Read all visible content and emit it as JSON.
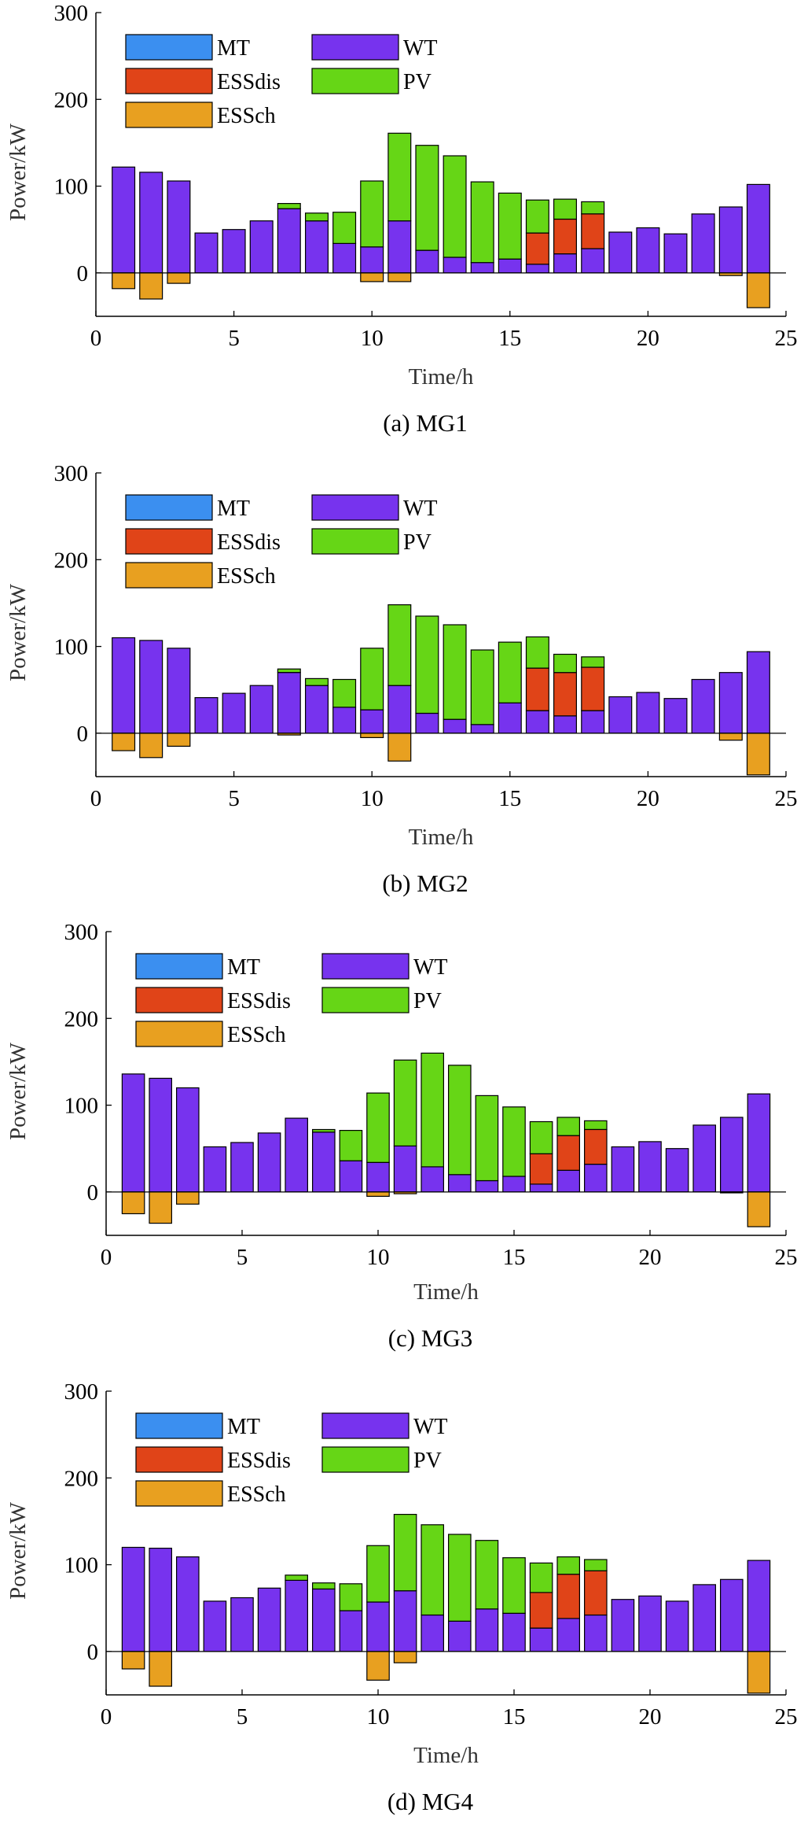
{
  "chart_data": [
    {
      "type": "bar",
      "caption": "(a) MG1",
      "xlabel": "Time/h",
      "ylabel": "Power/kW",
      "xlim": [
        0,
        25
      ],
      "ylim": [
        -50,
        300
      ],
      "xticks": [
        "0",
        "5",
        "10",
        "15",
        "20",
        "25"
      ],
      "yticks": [
        "0",
        "100",
        "200",
        "300"
      ],
      "x": [
        1,
        2,
        3,
        4,
        5,
        6,
        7,
        8,
        9,
        10,
        11,
        12,
        13,
        14,
        15,
        16,
        17,
        18,
        19,
        20,
        21,
        22,
        23,
        24
      ],
      "series": [
        {
          "name": "MT",
          "values": [
            0,
            0,
            0,
            0,
            0,
            0,
            0,
            0,
            0,
            0,
            0,
            0,
            0,
            0,
            0,
            0,
            0,
            0,
            0,
            0,
            0,
            0,
            0,
            0
          ]
        },
        {
          "name": "WT",
          "values": [
            122,
            116,
            106,
            46,
            50,
            60,
            74,
            60,
            34,
            30,
            60,
            26,
            18,
            12,
            16,
            10,
            22,
            28,
            47,
            52,
            45,
            68,
            76,
            102
          ]
        },
        {
          "name": "ESSdis",
          "values": [
            0,
            0,
            0,
            0,
            0,
            0,
            0,
            0,
            0,
            0,
            0,
            0,
            0,
            0,
            0,
            36,
            40,
            40,
            0,
            0,
            0,
            0,
            0,
            0
          ]
        },
        {
          "name": "PV",
          "values": [
            0,
            0,
            0,
            0,
            0,
            0,
            6,
            9,
            36,
            76,
            101,
            121,
            117,
            93,
            76,
            38,
            23,
            14,
            0,
            0,
            0,
            0,
            0,
            0
          ]
        },
        {
          "name": "ESSch",
          "values": [
            -18,
            -30,
            -12,
            0,
            0,
            0,
            0,
            0,
            0,
            -10,
            -10,
            0,
            0,
            0,
            0,
            0,
            0,
            0,
            0,
            0,
            0,
            0,
            -3,
            -40
          ]
        }
      ],
      "legend": [
        "MT",
        "WT",
        "ESSdis",
        "PV",
        "ESSch"
      ],
      "legend_position": "top-left",
      "colors": {
        "MT": "#3b8ff0",
        "WT": "#7733ee",
        "ESSdis": "#e04418",
        "PV": "#66d616",
        "ESSch": "#e8a020"
      }
    },
    {
      "type": "bar",
      "caption": "(b) MG2",
      "xlabel": "Time/h",
      "ylabel": "Power/kW",
      "xlim": [
        0,
        25
      ],
      "ylim": [
        -50,
        300
      ],
      "xticks": [
        "0",
        "5",
        "10",
        "15",
        "20",
        "25"
      ],
      "yticks": [
        "0",
        "100",
        "200",
        "300"
      ],
      "x": [
        1,
        2,
        3,
        4,
        5,
        6,
        7,
        8,
        9,
        10,
        11,
        12,
        13,
        14,
        15,
        16,
        17,
        18,
        19,
        20,
        21,
        22,
        23,
        24
      ],
      "series": [
        {
          "name": "MT",
          "values": [
            0,
            0,
            0,
            0,
            0,
            0,
            0,
            0,
            0,
            0,
            0,
            0,
            0,
            0,
            0,
            0,
            0,
            0,
            0,
            0,
            0,
            0,
            0,
            0
          ]
        },
        {
          "name": "WT",
          "values": [
            110,
            107,
            98,
            41,
            46,
            55,
            70,
            55,
            30,
            27,
            55,
            23,
            16,
            10,
            35,
            26,
            20,
            26,
            42,
            47,
            40,
            62,
            70,
            94
          ]
        },
        {
          "name": "ESSdis",
          "values": [
            0,
            0,
            0,
            0,
            0,
            0,
            0,
            0,
            0,
            0,
            0,
            0,
            0,
            0,
            0,
            49,
            50,
            50,
            0,
            0,
            0,
            0,
            0,
            0
          ]
        },
        {
          "name": "PV",
          "values": [
            0,
            0,
            0,
            0,
            0,
            0,
            4,
            8,
            32,
            71,
            93,
            112,
            109,
            86,
            70,
            36,
            21,
            12,
            0,
            0,
            0,
            0,
            0,
            0
          ]
        },
        {
          "name": "ESSch",
          "values": [
            -20,
            -28,
            -15,
            0,
            0,
            0,
            -2,
            0,
            0,
            -5,
            -32,
            0,
            0,
            0,
            0,
            0,
            0,
            0,
            0,
            0,
            0,
            0,
            -8,
            -48
          ]
        }
      ],
      "legend": [
        "MT",
        "WT",
        "ESSdis",
        "PV",
        "ESSch"
      ],
      "legend_position": "top-left",
      "colors": {
        "MT": "#3b8ff0",
        "WT": "#7733ee",
        "ESSdis": "#e04418",
        "PV": "#66d616",
        "ESSch": "#e8a020"
      }
    },
    {
      "type": "bar",
      "caption": "(c) MG3",
      "xlabel": "Time/h",
      "ylabel": "Power/kW",
      "xlim": [
        0,
        25
      ],
      "ylim": [
        -50,
        300
      ],
      "xticks": [
        "0",
        "5",
        "10",
        "15",
        "20",
        "25"
      ],
      "yticks": [
        "0",
        "100",
        "200",
        "300"
      ],
      "x": [
        1,
        2,
        3,
        4,
        5,
        6,
        7,
        8,
        9,
        10,
        11,
        12,
        13,
        14,
        15,
        16,
        17,
        18,
        19,
        20,
        21,
        22,
        23,
        24
      ],
      "series": [
        {
          "name": "MT",
          "values": [
            0,
            0,
            0,
            0,
            0,
            0,
            0,
            0,
            0,
            0,
            0,
            0,
            0,
            0,
            0,
            0,
            0,
            0,
            0,
            0,
            0,
            0,
            0,
            0
          ]
        },
        {
          "name": "WT",
          "values": [
            136,
            131,
            120,
            52,
            57,
            68,
            85,
            69,
            36,
            34,
            53,
            29,
            20,
            13,
            18,
            9,
            25,
            32,
            52,
            58,
            50,
            77,
            86,
            113
          ]
        },
        {
          "name": "ESSdis",
          "values": [
            0,
            0,
            0,
            0,
            0,
            0,
            0,
            0,
            0,
            0,
            0,
            0,
            0,
            0,
            0,
            35,
            40,
            40,
            0,
            0,
            0,
            0,
            0,
            0
          ]
        },
        {
          "name": "PV",
          "values": [
            0,
            0,
            0,
            0,
            0,
            0,
            0,
            3,
            35,
            80,
            99,
            131,
            126,
            98,
            80,
            37,
            21,
            10,
            0,
            0,
            0,
            0,
            0,
            0
          ]
        },
        {
          "name": "ESSch",
          "values": [
            -25,
            -36,
            -14,
            0,
            0,
            0,
            0,
            0,
            0,
            -5,
            -2,
            0,
            0,
            0,
            0,
            0,
            0,
            0,
            0,
            0,
            0,
            0,
            -1,
            -40
          ]
        }
      ],
      "legend": [
        "MT",
        "WT",
        "ESSdis",
        "PV",
        "ESSch"
      ],
      "legend_position": "top-left",
      "colors": {
        "MT": "#3b8ff0",
        "WT": "#7733ee",
        "ESSdis": "#e04418",
        "PV": "#66d616",
        "ESSch": "#e8a020"
      }
    },
    {
      "type": "bar",
      "caption": "(d) MG4",
      "xlabel": "Time/h",
      "ylabel": "Power/kW",
      "xlim": [
        0,
        25
      ],
      "ylim": [
        -50,
        300
      ],
      "xticks": [
        "0",
        "5",
        "10",
        "15",
        "20",
        "25"
      ],
      "yticks": [
        "0",
        "100",
        "200",
        "300"
      ],
      "x": [
        1,
        2,
        3,
        4,
        5,
        6,
        7,
        8,
        9,
        10,
        11,
        12,
        13,
        14,
        15,
        16,
        17,
        18,
        19,
        20,
        21,
        22,
        23,
        24
      ],
      "series": [
        {
          "name": "MT",
          "values": [
            0,
            0,
            0,
            0,
            0,
            0,
            0,
            0,
            0,
            0,
            0,
            0,
            0,
            0,
            0,
            0,
            0,
            0,
            0,
            0,
            0,
            0,
            0,
            0
          ]
        },
        {
          "name": "WT",
          "values": [
            120,
            119,
            109,
            58,
            62,
            73,
            82,
            72,
            47,
            57,
            70,
            42,
            35,
            49,
            44,
            27,
            38,
            42,
            60,
            64,
            58,
            77,
            83,
            105
          ]
        },
        {
          "name": "ESSdis",
          "values": [
            0,
            0,
            0,
            0,
            0,
            0,
            0,
            0,
            0,
            0,
            0,
            0,
            0,
            0,
            0,
            41,
            51,
            51,
            0,
            0,
            0,
            0,
            0,
            0
          ]
        },
        {
          "name": "PV",
          "values": [
            0,
            0,
            0,
            0,
            0,
            0,
            6,
            7,
            31,
            65,
            88,
            104,
            100,
            79,
            64,
            34,
            20,
            13,
            0,
            0,
            0,
            0,
            0,
            0
          ]
        },
        {
          "name": "ESSch",
          "values": [
            -20,
            -40,
            0,
            0,
            0,
            0,
            0,
            0,
            0,
            -33,
            -13,
            0,
            0,
            0,
            0,
            0,
            0,
            0,
            0,
            0,
            0,
            0,
            0,
            -48
          ]
        }
      ],
      "legend": [
        "MT",
        "WT",
        "ESSdis",
        "PV",
        "ESSch"
      ],
      "legend_position": "top-left",
      "colors": {
        "MT": "#3b8ff0",
        "WT": "#7733ee",
        "ESSdis": "#e04418",
        "PV": "#66d616",
        "ESSch": "#e8a020"
      }
    }
  ]
}
